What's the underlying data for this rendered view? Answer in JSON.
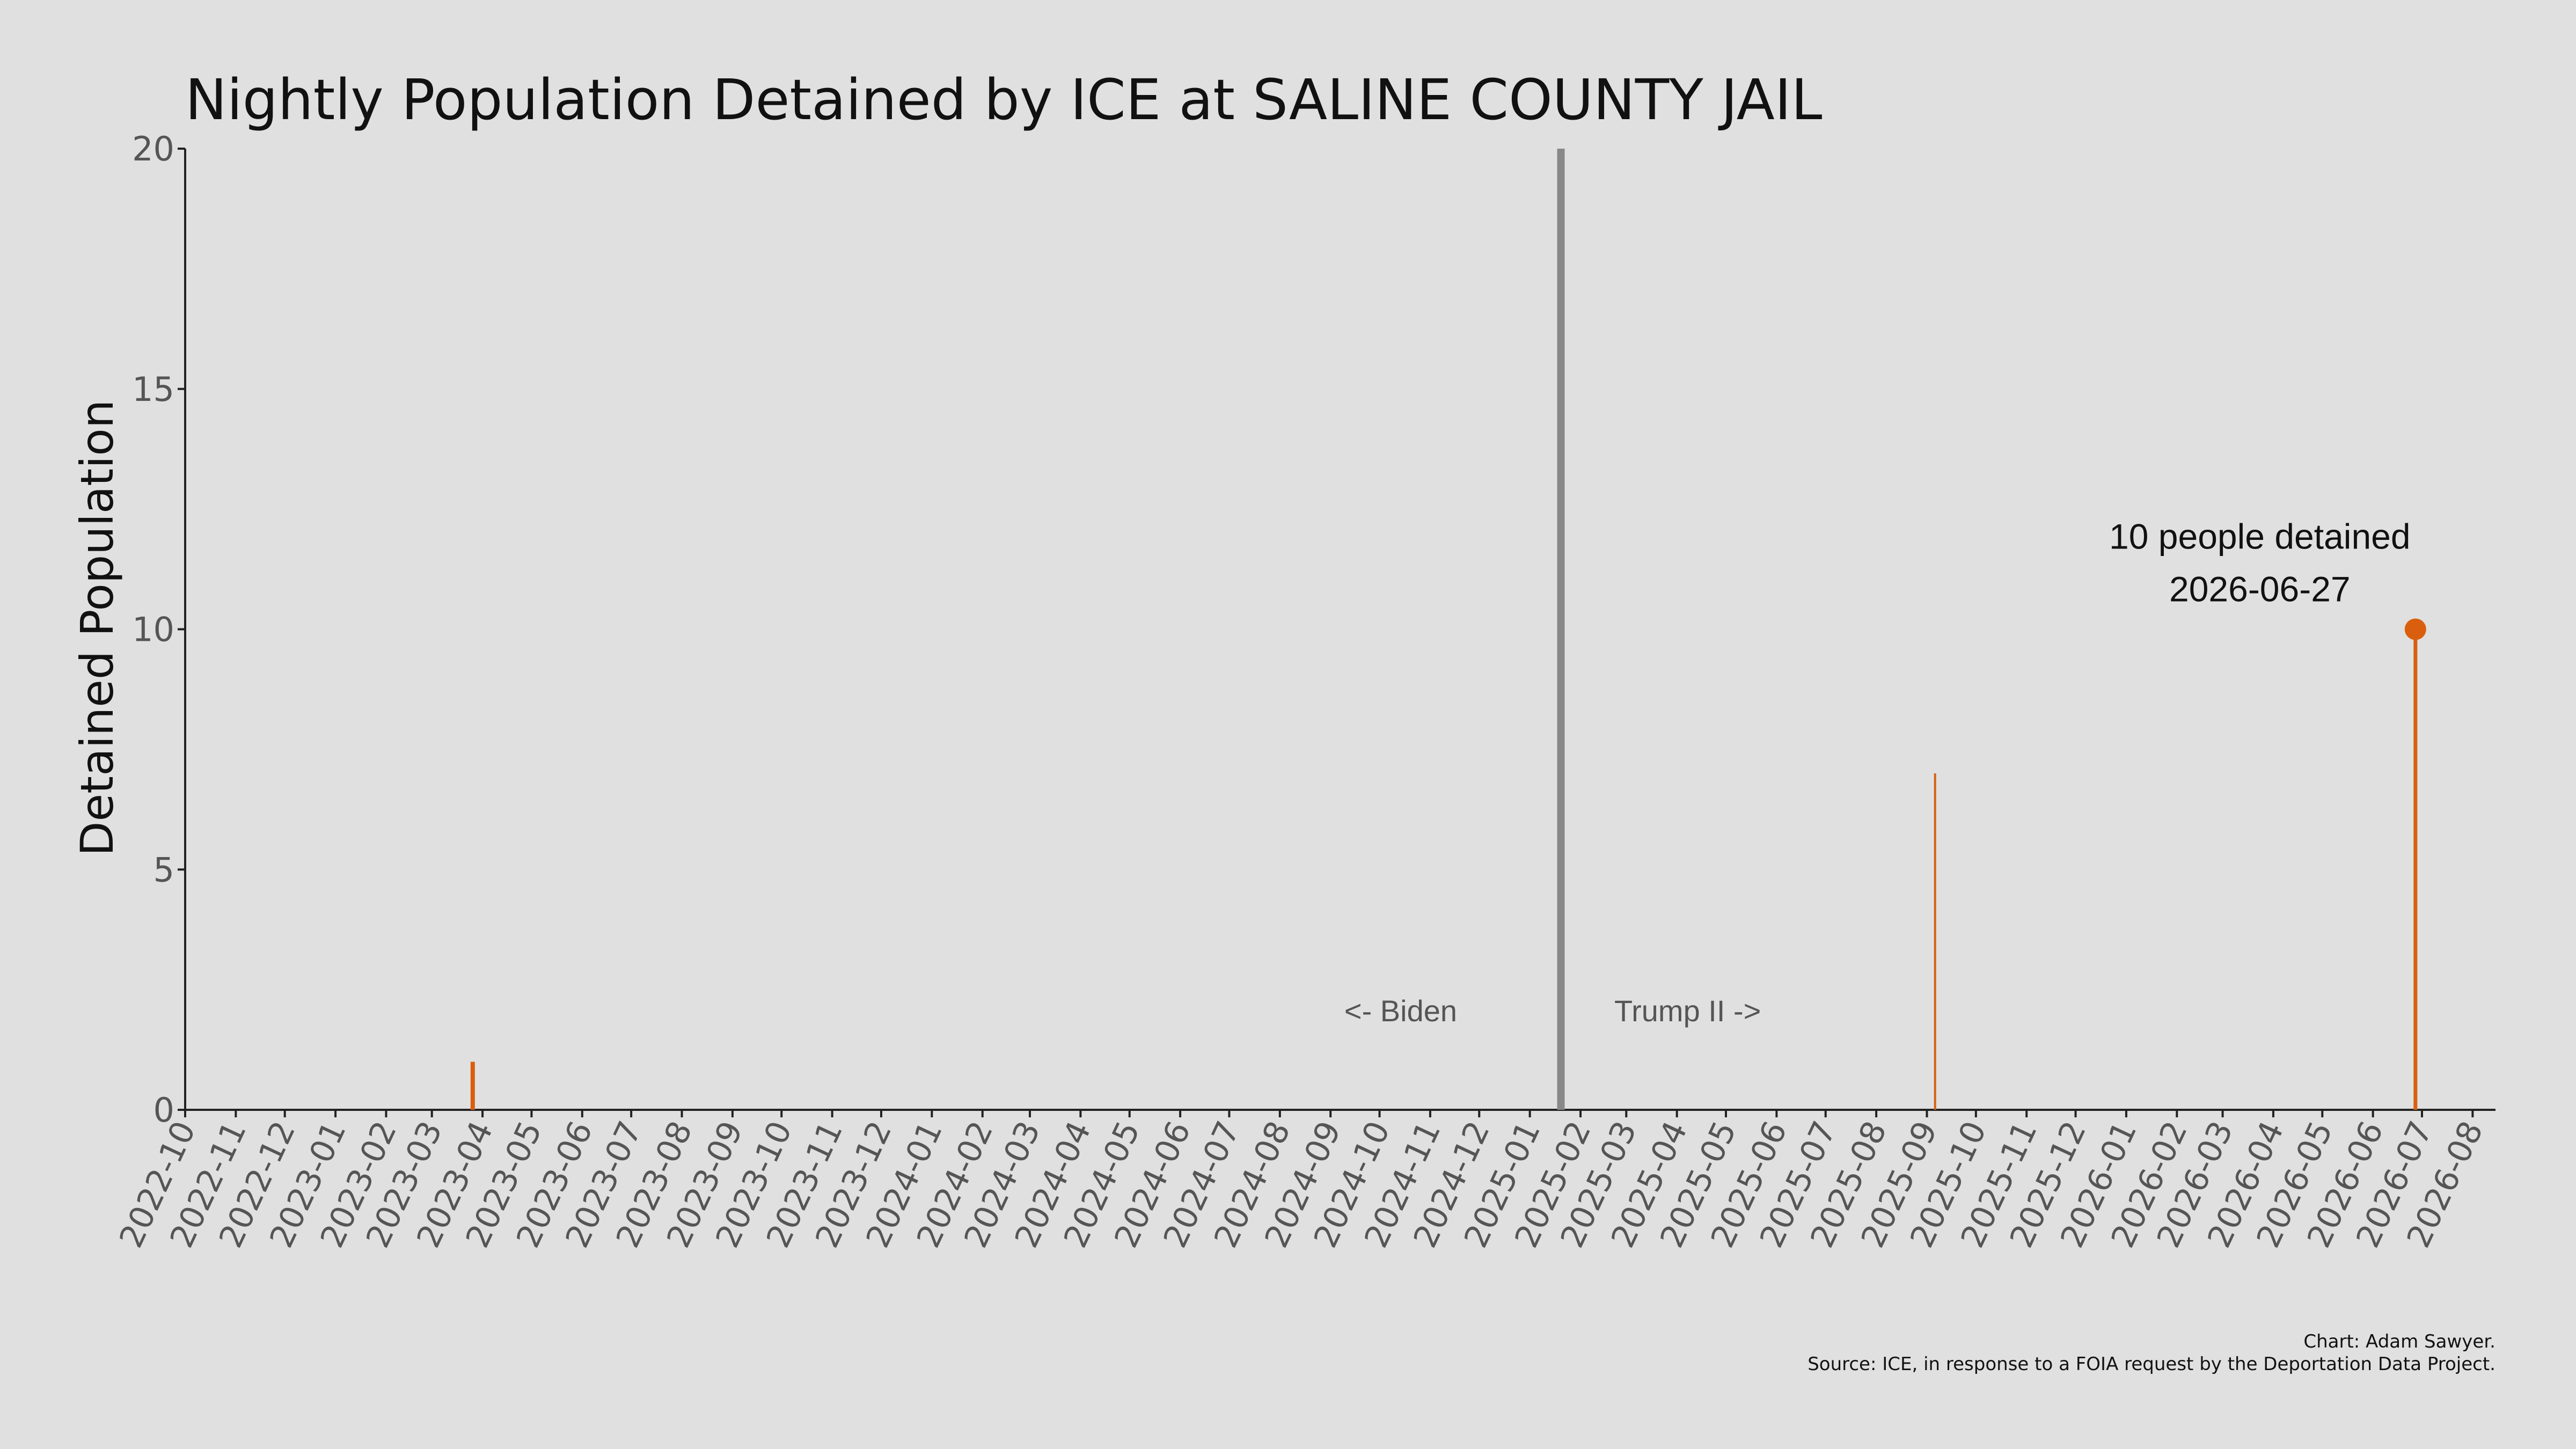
{
  "chart_data": {
    "type": "bar",
    "title": "Nightly Population Detained by ICE at SALINE COUNTY JAIL",
    "xlabel": "",
    "ylabel": "Detained Population",
    "ylim": [
      0,
      20
    ],
    "yticks": [
      0,
      5,
      10,
      15,
      20
    ],
    "xlim": [
      "2022-10-01",
      "2026-08-15"
    ],
    "xticks": [
      "2022-10",
      "2022-11",
      "2022-12",
      "2023-01",
      "2023-02",
      "2023-03",
      "2023-04",
      "2023-05",
      "2023-06",
      "2023-07",
      "2023-08",
      "2023-09",
      "2023-10",
      "2023-11",
      "2023-12",
      "2024-01",
      "2024-02",
      "2024-03",
      "2024-04",
      "2024-05",
      "2024-06",
      "2024-07",
      "2024-08",
      "2024-09",
      "2024-10",
      "2024-11",
      "2024-12",
      "2025-01",
      "2025-02",
      "2025-03",
      "2025-04",
      "2025-05",
      "2025-06",
      "2025-07",
      "2025-08",
      "2025-09",
      "2025-10",
      "2025-11",
      "2025-12",
      "2026-01",
      "2026-02",
      "2026-03",
      "2026-04",
      "2026-05",
      "2026-06",
      "2026-07",
      "2026-08"
    ],
    "series": [
      {
        "color": "#d95f0e",
        "points": [
          {
            "date": "2023-03-26",
            "value": 1
          },
          {
            "date": "2025-09-06",
            "value": 7
          },
          {
            "date": "2026-06-27",
            "value": 10
          }
        ]
      }
    ],
    "divider": {
      "date": "2025-01-20",
      "color": "#888888"
    },
    "era_labels": {
      "left": "<- Biden",
      "right": "Trump II ->"
    },
    "highlight": {
      "date": "2026-06-27",
      "value": 10,
      "line1": "10 people detained",
      "line2": "2026-06-27"
    },
    "grid": false,
    "legend": "none"
  },
  "credits": {
    "line1": "Chart: Adam Sawyer.",
    "line2": "Source: ICE, in response to a FOIA request by the Deportation Data Project."
  },
  "colors": {
    "background": "#e0e0e0",
    "accent": "#d95f0e",
    "divider": "#888888"
  }
}
